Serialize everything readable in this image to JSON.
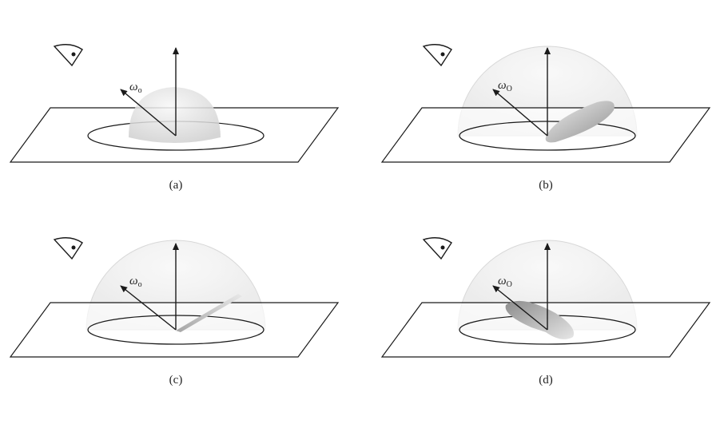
{
  "panels": [
    {
      "caption": "(a)",
      "omega_label": "ω",
      "omega_sub": "o",
      "lobe": "diffuse"
    },
    {
      "caption": "(b)",
      "omega_label": "ω",
      "omega_sub": "O",
      "lobe": "glossy"
    },
    {
      "caption": "(c)",
      "omega_label": "ω",
      "omega_sub": "o",
      "lobe": "specular"
    },
    {
      "caption": "(d)",
      "omega_label": "ω",
      "omega_sub": "O",
      "lobe": "retro"
    }
  ],
  "colors": {
    "stroke": "#1a1a1a",
    "dome": "#dcdcdc",
    "lobe": "#9a9a9a"
  }
}
